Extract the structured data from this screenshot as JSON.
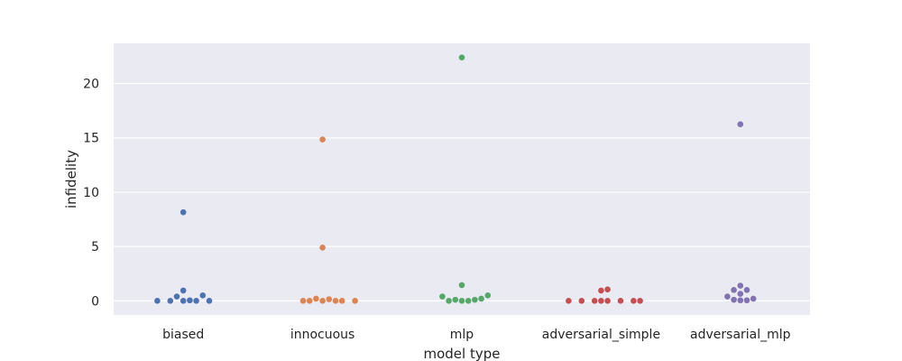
{
  "chart_data": {
    "type": "scatter",
    "subtype": "swarm",
    "xlabel": "model type",
    "ylabel": "infidelity",
    "categories": [
      "biased",
      "innocuous",
      "mlp",
      "adversarial_simple",
      "adversarial_mlp"
    ],
    "ylim": [
      -1.3,
      23.7
    ],
    "yticks": [
      0,
      5,
      10,
      15,
      20
    ],
    "grid": true,
    "background": "#eaeaf2",
    "gridColor": "#ffffff",
    "series": [
      {
        "category": "biased",
        "color": "#4c72b0",
        "values": [
          0.4,
          0.05,
          0.0,
          0.0,
          0.0,
          0.0,
          0.0,
          0.5,
          0.95,
          8.15
        ]
      },
      {
        "category": "innocuous",
        "color": "#dd8452",
        "values": [
          0.15,
          0.0,
          0.0,
          0.0,
          0.0,
          0.0,
          0.0,
          0.2,
          4.9,
          14.85
        ]
      },
      {
        "category": "mlp",
        "color": "#55a868",
        "values": [
          0.5,
          0.4,
          0.1,
          0.0,
          0.0,
          0.0,
          0.1,
          0.2,
          1.45,
          22.4
        ]
      },
      {
        "category": "adversarial_simple",
        "color": "#c44e52",
        "values": [
          0.0,
          0.0,
          0.0,
          0.0,
          0.0,
          0.0,
          0.0,
          0.0,
          1.05,
          0.95
        ]
      },
      {
        "category": "adversarial_mlp",
        "color": "#8172b3",
        "values": [
          0.2,
          0.05,
          0.05,
          0.1,
          0.4,
          1.0,
          1.0,
          0.65,
          1.4,
          16.25
        ]
      }
    ]
  }
}
